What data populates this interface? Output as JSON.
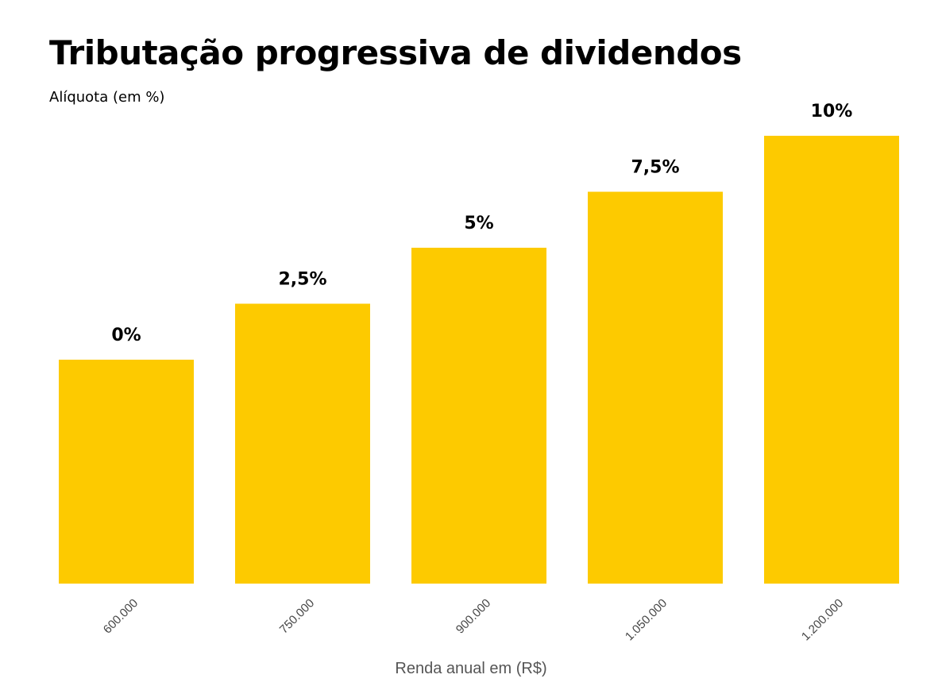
{
  "chart_data": {
    "type": "bar",
    "title": "Tributação progressiva de dividendos",
    "subtitle": "Alíquota (em %)",
    "xlabel": "Renda anual em (R$)",
    "ylabel": "",
    "categories": [
      "600.000",
      "750.000",
      "900.000",
      "1.050.000",
      "1.200.000"
    ],
    "values": [
      0,
      2.5,
      5,
      7.5,
      10
    ],
    "data_labels": [
      "0%",
      "2,5%",
      "5%",
      "7,5%",
      "10%"
    ],
    "ylim": [
      -10,
      10
    ],
    "grid": false,
    "legend": "none",
    "colors": {
      "bar": "#FDCA00",
      "label": "#000000",
      "tick": "#444444"
    }
  }
}
